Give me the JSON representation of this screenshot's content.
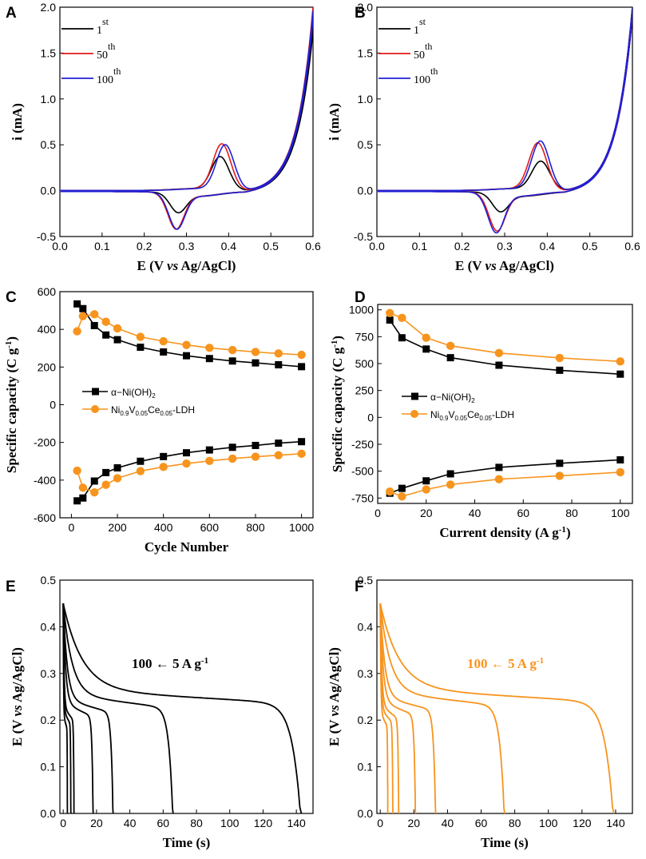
{
  "chart_data": [
    {
      "id": "A",
      "type": "line",
      "xlabel": "E (V vs Ag/AgCl)",
      "ylabel": "i (mA)",
      "xlim": [
        0.0,
        0.6
      ],
      "ylim": [
        -0.5,
        2.0
      ],
      "xticks": [
        0.0,
        0.1,
        0.2,
        0.3,
        0.4,
        0.5,
        0.6
      ],
      "yticks": [
        -0.5,
        0.0,
        0.5,
        1.0,
        1.5,
        2.0
      ],
      "xtick_labels": [
        "0.0",
        "0.1",
        "0.2",
        "0.3",
        "0.4",
        "0.5",
        "0.6"
      ],
      "ytick_labels": [
        "-0.5",
        "0.0",
        "0.5",
        "1.0",
        "1.5",
        "2.0"
      ],
      "series": [
        {
          "name": "1st",
          "label_base": "1",
          "label_sup": "st",
          "color": "#000000",
          "anodic_peak": [
            0.38,
            0.36
          ],
          "cathodic_peak": [
            0.28,
            -0.2
          ],
          "end_current": 1.82
        },
        {
          "name": "50th",
          "label_base": "50",
          "label_sup": "th",
          "color": "#e31a1c",
          "anodic_peak": [
            0.384,
            0.5
          ],
          "cathodic_peak": [
            0.275,
            -0.38
          ],
          "end_current": 2.0
        },
        {
          "name": "100th",
          "label_base": "100",
          "label_sup": "th",
          "color": "#1f1fd6",
          "anodic_peak": [
            0.392,
            0.49
          ],
          "cathodic_peak": [
            0.277,
            -0.38
          ],
          "end_current": 1.96
        }
      ]
    },
    {
      "id": "B",
      "type": "line",
      "xlabel": "E (V vs Ag/AgCl)",
      "ylabel": "i (mA)",
      "xlim": [
        0.0,
        0.6
      ],
      "ylim": [
        -0.5,
        2.0
      ],
      "xticks": [
        0.0,
        0.1,
        0.2,
        0.3,
        0.4,
        0.5,
        0.6
      ],
      "yticks": [
        -0.5,
        0.0,
        0.5,
        1.0,
        1.5,
        2.0
      ],
      "xtick_labels": [
        "0.0",
        "0.1",
        "0.2",
        "0.3",
        "0.4",
        "0.5",
        "0.6"
      ],
      "ytick_labels": [
        "-0.5",
        "0.0",
        "0.5",
        "1.0",
        "1.5",
        "2.0"
      ],
      "series": [
        {
          "name": "1st",
          "label_base": "1",
          "label_sup": "st",
          "color": "#000000",
          "anodic_peak": [
            0.385,
            0.31
          ],
          "cathodic_peak": [
            0.29,
            -0.19
          ],
          "end_current": 2.0
        },
        {
          "name": "50th",
          "label_base": "50",
          "label_sup": "th",
          "color": "#e31a1c",
          "anodic_peak": [
            0.378,
            0.51
          ],
          "cathodic_peak": [
            0.282,
            -0.4
          ],
          "end_current": 2.0
        },
        {
          "name": "100th",
          "label_base": "100",
          "label_sup": "th",
          "color": "#1f1fd6",
          "anodic_peak": [
            0.384,
            0.53
          ],
          "cathodic_peak": [
            0.28,
            -0.42
          ],
          "end_current": 2.0
        }
      ]
    },
    {
      "id": "C",
      "type": "line",
      "xlabel": "Cycle Number",
      "ylabel": "Specific capacity (C g⁻¹)",
      "xlim": [
        -50,
        1050
      ],
      "ylim": [
        -600,
        600
      ],
      "xticks": [
        0,
        200,
        400,
        600,
        800,
        1000
      ],
      "yticks": [
        -600,
        -400,
        -200,
        0,
        200,
        400,
        600
      ],
      "xtick_labels": [
        "0",
        "200",
        "400",
        "600",
        "800",
        "1000"
      ],
      "ytick_labels": [
        "-600",
        "-400",
        "-200",
        "0",
        "200",
        "400",
        "600"
      ],
      "x": [
        25,
        50,
        100,
        150,
        200,
        300,
        400,
        500,
        600,
        700,
        800,
        900,
        1000
      ],
      "series": [
        {
          "name": "α-Ni(OH)2 (charge)",
          "color": "#000000",
          "marker": "square",
          "values": [
            535,
            510,
            420,
            370,
            345,
            305,
            280,
            260,
            245,
            232,
            222,
            212,
            202
          ]
        },
        {
          "name": "Ni0.9V0.05Ce0.05-LDH (charge)",
          "color": "#f7941d",
          "marker": "circle",
          "values": [
            390,
            470,
            480,
            440,
            405,
            360,
            337,
            317,
            302,
            290,
            280,
            272,
            265
          ]
        },
        {
          "name": "α-Ni(OH)2 (discharge)",
          "color": "#000000",
          "marker": "square",
          "values": [
            -510,
            -495,
            -405,
            -360,
            -335,
            -300,
            -275,
            -255,
            -240,
            -226,
            -216,
            -204,
            -196
          ]
        },
        {
          "name": "Ni0.9V0.05Ce0.05-LDH (discharge)",
          "color": "#f7941d",
          "marker": "circle",
          "values": [
            -350,
            -440,
            -465,
            -425,
            -390,
            -352,
            -330,
            -312,
            -298,
            -286,
            -276,
            -268,
            -260
          ]
        }
      ],
      "legend": [
        {
          "base": "α−Ni(OH)",
          "sub": "2",
          "color": "#000000",
          "marker": "square"
        },
        {
          "base": "Ni",
          "sub1": "0.9",
          "mid1": "V",
          "sub2": "0.05",
          "mid2": "Ce",
          "sub3": "0.05",
          "tail": "-LDH",
          "color": "#f7941d",
          "marker": "circle"
        }
      ]
    },
    {
      "id": "D",
      "type": "line",
      "xlabel": "Current  density (A g⁻¹)",
      "ylabel": "Specific  capacity (C g⁻¹)",
      "xlim": [
        0,
        105
      ],
      "ylim": [
        -800,
        1050
      ],
      "xticks": [
        0,
        20,
        40,
        60,
        80,
        100
      ],
      "yticks": [
        -750,
        -500,
        -250,
        0,
        250,
        500,
        750,
        1000
      ],
      "xtick_labels": [
        "0",
        "20",
        "40",
        "60",
        "80",
        "100"
      ],
      "ytick_labels": [
        "-750",
        "-500",
        "-250",
        "0",
        "250",
        "500",
        "750",
        "1000"
      ],
      "x": [
        5,
        10,
        20,
        30,
        50,
        75,
        100
      ],
      "series": [
        {
          "name": "α-Ni(OH)2 (charge)",
          "color": "#000000",
          "marker": "square",
          "values": [
            905,
            740,
            635,
            555,
            485,
            438,
            402
          ]
        },
        {
          "name": "Ni0.9V0.05Ce0.05-LDH (charge)",
          "color": "#f7941d",
          "marker": "circle",
          "values": [
            970,
            925,
            740,
            665,
            598,
            553,
            520
          ]
        },
        {
          "name": "α-Ni(OH)2 (discharge)",
          "color": "#000000",
          "marker": "square",
          "values": [
            -705,
            -660,
            -590,
            -525,
            -465,
            -427,
            -395
          ]
        },
        {
          "name": "Ni0.9V0.05Ce0.05-LDH (discharge)",
          "color": "#f7941d",
          "marker": "circle",
          "values": [
            -690,
            -735,
            -670,
            -625,
            -575,
            -543,
            -510
          ]
        }
      ],
      "legend": [
        {
          "base": "α−Ni(OH)",
          "sub": "2",
          "color": "#000000",
          "marker": "square"
        },
        {
          "base": "Ni",
          "sub1": "0.9",
          "mid1": "V",
          "sub2": "0.05",
          "mid2": "Ce",
          "sub3": "0.05",
          "tail": "-LDH",
          "color": "#f7941d",
          "marker": "circle"
        }
      ]
    },
    {
      "id": "E",
      "type": "line",
      "xlabel": "Time (s)",
      "ylabel": "E (V vs Ag/AgCl)",
      "xlim": [
        -2,
        150
      ],
      "ylim": [
        0.0,
        0.5
      ],
      "xticks": [
        0,
        20,
        40,
        60,
        80,
        100,
        120,
        140
      ],
      "yticks": [
        0.0,
        0.1,
        0.2,
        0.3,
        0.4,
        0.5
      ],
      "xtick_labels": [
        "0",
        "20",
        "40",
        "60",
        "80",
        "100",
        "120",
        "140"
      ],
      "ytick_labels": [
        "0.0",
        "0.1",
        "0.2",
        "0.3",
        "0.4",
        "0.5"
      ],
      "annotation": "100 ← 5 A g⁻¹",
      "color": "#000000",
      "discharge_times_s": [
        143,
        66,
        30,
        18,
        6.5,
        4.6,
        2.5
      ],
      "plateau_potentials_V": [
        0.265,
        0.255,
        0.245,
        0.237,
        0.228,
        0.22,
        0.21
      ]
    },
    {
      "id": "F",
      "type": "line",
      "xlabel": "Time (s)",
      "ylabel": "E (V vs Ag/AgCl)",
      "xlim": [
        -2,
        150
      ],
      "ylim": [
        0.0,
        0.5
      ],
      "xticks": [
        0,
        20,
        40,
        60,
        80,
        100,
        120,
        140
      ],
      "yticks": [
        0.0,
        0.1,
        0.2,
        0.3,
        0.4,
        0.5
      ],
      "xtick_labels": [
        "0",
        "20",
        "40",
        "60",
        "80",
        "100",
        "120",
        "140"
      ],
      "ytick_labels": [
        "0.0",
        "0.1",
        "0.2",
        "0.3",
        "0.4",
        "0.5"
      ],
      "annotation": "100 ← 5 A g⁻¹",
      "color": "#f7941d",
      "discharge_times_s": [
        139,
        74,
        33,
        21,
        11,
        7.5,
        4.5
      ],
      "plateau_potentials_V": [
        0.268,
        0.26,
        0.25,
        0.24,
        0.232,
        0.224,
        0.215
      ]
    }
  ]
}
